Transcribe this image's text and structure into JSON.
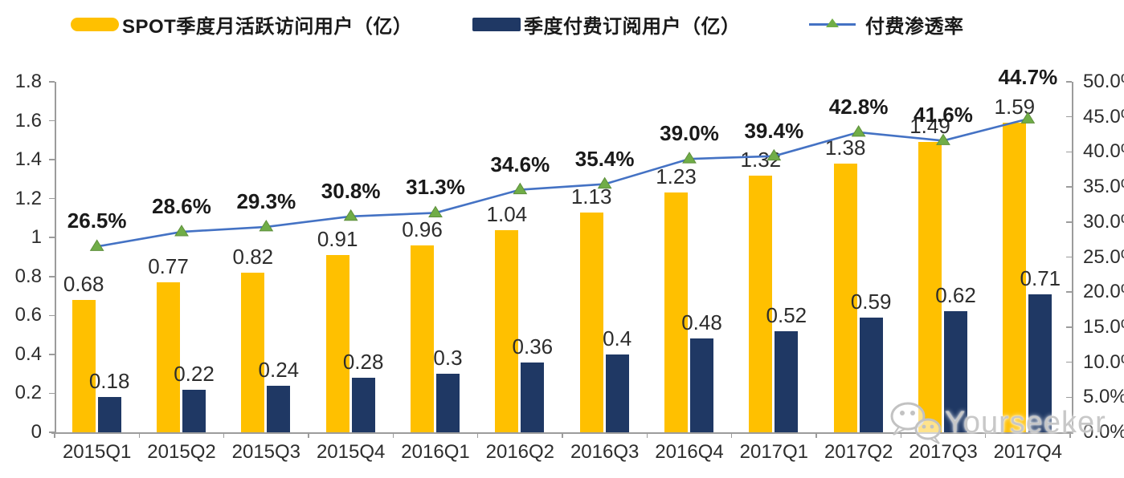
{
  "chart_data": {
    "type": "bar",
    "subtype": "grouped-bar-with-line-combo",
    "title": "",
    "categories": [
      "2015Q1",
      "2015Q2",
      "2015Q3",
      "2015Q4",
      "2016Q1",
      "2016Q2",
      "2016Q3",
      "2016Q4",
      "2017Q1",
      "2017Q2",
      "2017Q3",
      "2017Q4"
    ],
    "series": [
      {
        "name": "SPOT季度月活跃访问用户（亿）",
        "type": "bar",
        "axis": "left",
        "color": "#FFC000",
        "values": [
          0.68,
          0.77,
          0.82,
          0.91,
          0.96,
          1.04,
          1.13,
          1.23,
          1.32,
          1.38,
          1.49,
          1.59
        ],
        "labels": [
          "0.68",
          "0.77",
          "0.82",
          "0.91",
          "0.96",
          "1.04",
          "1.13",
          "1.23",
          "1.32",
          "1.38",
          "1.49",
          "1.59"
        ]
      },
      {
        "name": "季度付费订阅用户（亿）",
        "type": "bar",
        "axis": "left",
        "color": "#1F3864",
        "values": [
          0.18,
          0.22,
          0.24,
          0.28,
          0.3,
          0.36,
          0.4,
          0.48,
          0.52,
          0.59,
          0.62,
          0.71
        ],
        "labels": [
          "0.18",
          "0.22",
          "0.24",
          "0.28",
          "0.3",
          "0.36",
          "0.4",
          "0.48",
          "0.52",
          "0.59",
          "0.62",
          "0.71"
        ]
      },
      {
        "name": "付费渗透率",
        "type": "line",
        "axis": "right",
        "color": "#4472C4",
        "marker": "triangle",
        "marker_color": "#70AD47",
        "values": [
          26.5,
          28.6,
          29.3,
          30.8,
          31.3,
          34.6,
          35.4,
          39.0,
          39.4,
          42.8,
          41.6,
          44.7
        ],
        "labels": [
          "26.5%",
          "28.6%",
          "29.3%",
          "30.8%",
          "31.3%",
          "34.6%",
          "35.4%",
          "39.0%",
          "39.4%",
          "42.8%",
          "41.6%",
          "44.7%"
        ]
      }
    ],
    "left_axis": {
      "min": 0,
      "max": 1.8,
      "ticks": [
        "0",
        "0.2",
        "0.4",
        "0.6",
        "0.8",
        "1",
        "1.2",
        "1.4",
        "1.6",
        "1.8"
      ]
    },
    "right_axis": {
      "min": 0,
      "max": 50,
      "ticks": [
        "0.0%",
        "5.0%",
        "10.0%",
        "15.0%",
        "20.0%",
        "25.0%",
        "30.0%",
        "35.0%",
        "40.0%",
        "45.0%",
        "50.0%"
      ]
    },
    "grid": false,
    "legend_position": "top"
  },
  "watermark": {
    "text": "Yourseeker"
  }
}
